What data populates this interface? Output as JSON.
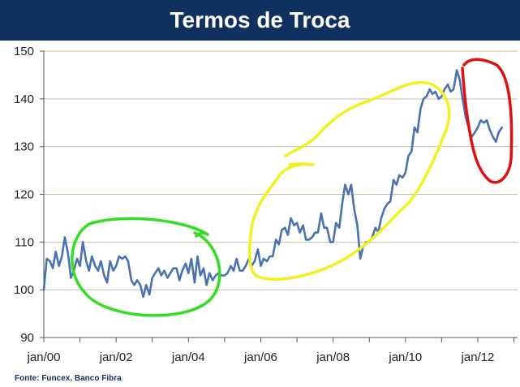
{
  "title": "Termos de Troca",
  "source": "Fonte: Funcex, Banco Fibra",
  "colors": {
    "title_bg": "#10305f",
    "line": "#4a72b0",
    "grid": "#c8c0a0",
    "annotation_green": "#33dd22",
    "annotation_yellow": "#f2f020",
    "annotation_red": "#e01010"
  },
  "chart_data": {
    "type": "line",
    "title": "Termos de Troca",
    "xlabel": "",
    "ylabel": "",
    "ylim": [
      90,
      150
    ],
    "yticks": [
      90,
      100,
      110,
      120,
      130,
      140,
      150
    ],
    "xlim": [
      2000,
      2013.1
    ],
    "xticks": [
      {
        "value": 2000,
        "label": "jan/00"
      },
      {
        "value": 2002,
        "label": "jan/02"
      },
      {
        "value": 2004,
        "label": "jan/04"
      },
      {
        "value": 2006,
        "label": "jan/06"
      },
      {
        "value": 2008,
        "label": "jan/08"
      },
      {
        "value": 2010,
        "label": "jan/10"
      },
      {
        "value": 2012,
        "label": "jan/12"
      }
    ],
    "grid": "horizontal",
    "series": [
      {
        "points": [
          [
            2000.0,
            100.0
          ],
          [
            2000.08,
            106.5
          ],
          [
            2000.17,
            106.0
          ],
          [
            2000.25,
            104.5
          ],
          [
            2000.33,
            108.0
          ],
          [
            2000.42,
            105.0
          ],
          [
            2000.5,
            107.0
          ],
          [
            2000.58,
            111.0
          ],
          [
            2000.67,
            107.5
          ],
          [
            2000.75,
            102.5
          ],
          [
            2000.83,
            104.0
          ],
          [
            2000.92,
            106.5
          ],
          [
            2001.0,
            105.0
          ],
          [
            2001.08,
            110.0
          ],
          [
            2001.17,
            106.0
          ],
          [
            2001.25,
            104.0
          ],
          [
            2001.33,
            107.0
          ],
          [
            2001.42,
            105.0
          ],
          [
            2001.5,
            104.0
          ],
          [
            2001.58,
            106.0
          ],
          [
            2001.67,
            103.0
          ],
          [
            2001.75,
            101.5
          ],
          [
            2001.83,
            106.0
          ],
          [
            2001.92,
            104.0
          ],
          [
            2002.0,
            105.0
          ],
          [
            2002.08,
            107.0
          ],
          [
            2002.17,
            106.5
          ],
          [
            2002.25,
            107.0
          ],
          [
            2002.33,
            106.0
          ],
          [
            2002.42,
            102.0
          ],
          [
            2002.5,
            101.0
          ],
          [
            2002.58,
            102.0
          ],
          [
            2002.67,
            101.0
          ],
          [
            2002.75,
            98.5
          ],
          [
            2002.83,
            101.0
          ],
          [
            2002.92,
            99.0
          ],
          [
            2003.0,
            102.5
          ],
          [
            2003.08,
            103.5
          ],
          [
            2003.17,
            104.5
          ],
          [
            2003.25,
            103.0
          ],
          [
            2003.33,
            104.0
          ],
          [
            2003.42,
            102.5
          ],
          [
            2003.5,
            103.5
          ],
          [
            2003.58,
            104.5
          ],
          [
            2003.67,
            104.5
          ],
          [
            2003.75,
            102.0
          ],
          [
            2003.83,
            104.0
          ],
          [
            2003.92,
            105.5
          ],
          [
            2004.0,
            103.5
          ],
          [
            2004.08,
            106.5
          ],
          [
            2004.17,
            101.5
          ],
          [
            2004.25,
            107.0
          ],
          [
            2004.33,
            103.0
          ],
          [
            2004.42,
            104.5
          ],
          [
            2004.5,
            101.0
          ],
          [
            2004.58,
            103.5
          ],
          [
            2004.67,
            102.0
          ],
          [
            2004.75,
            103.0
          ],
          [
            2004.83,
            103.5
          ],
          [
            2004.92,
            103.0
          ],
          [
            2005.0,
            103.0
          ],
          [
            2005.08,
            103.5
          ],
          [
            2005.17,
            105.0
          ],
          [
            2005.25,
            104.0
          ],
          [
            2005.33,
            106.5
          ],
          [
            2005.42,
            104.0
          ],
          [
            2005.5,
            104.0
          ],
          [
            2005.58,
            105.0
          ],
          [
            2005.67,
            106.5
          ],
          [
            2005.75,
            105.0
          ],
          [
            2005.83,
            106.0
          ],
          [
            2005.92,
            108.5
          ],
          [
            2006.0,
            105.0
          ],
          [
            2006.08,
            106.5
          ],
          [
            2006.17,
            106.0
          ],
          [
            2006.25,
            107.0
          ],
          [
            2006.33,
            107.0
          ],
          [
            2006.42,
            110.5
          ],
          [
            2006.5,
            109.5
          ],
          [
            2006.58,
            112.5
          ],
          [
            2006.67,
            113.0
          ],
          [
            2006.75,
            111.5
          ],
          [
            2006.83,
            115.0
          ],
          [
            2006.92,
            113.5
          ],
          [
            2007.0,
            114.0
          ],
          [
            2007.08,
            112.0
          ],
          [
            2007.17,
            113.5
          ],
          [
            2007.25,
            110.5
          ],
          [
            2007.33,
            110.5
          ],
          [
            2007.42,
            111.0
          ],
          [
            2007.5,
            112.0
          ],
          [
            2007.58,
            112.0
          ],
          [
            2007.67,
            116.0
          ],
          [
            2007.75,
            113.0
          ],
          [
            2007.83,
            113.0
          ],
          [
            2007.92,
            110.0
          ],
          [
            2008.0,
            110.0
          ],
          [
            2008.08,
            114.0
          ],
          [
            2008.17,
            113.0
          ],
          [
            2008.25,
            118.0
          ],
          [
            2008.33,
            122.0
          ],
          [
            2008.42,
            120.0
          ],
          [
            2008.5,
            122.0
          ],
          [
            2008.58,
            117.0
          ],
          [
            2008.67,
            113.5
          ],
          [
            2008.75,
            106.5
          ],
          [
            2008.83,
            109.0
          ],
          [
            2008.92,
            110.0
          ],
          [
            2009.0,
            110.0
          ],
          [
            2009.08,
            111.0
          ],
          [
            2009.17,
            113.0
          ],
          [
            2009.25,
            112.0
          ],
          [
            2009.33,
            115.0
          ],
          [
            2009.42,
            117.0
          ],
          [
            2009.5,
            118.0
          ],
          [
            2009.58,
            118.5
          ],
          [
            2009.67,
            123.0
          ],
          [
            2009.75,
            122.0
          ],
          [
            2009.83,
            124.0
          ],
          [
            2009.92,
            123.5
          ],
          [
            2010.0,
            124.5
          ],
          [
            2010.08,
            128.0
          ],
          [
            2010.17,
            129.0
          ],
          [
            2010.25,
            134.0
          ],
          [
            2010.33,
            133.0
          ],
          [
            2010.42,
            138.0
          ],
          [
            2010.5,
            140.0
          ],
          [
            2010.58,
            140.5
          ],
          [
            2010.67,
            142.0
          ],
          [
            2010.75,
            141.0
          ],
          [
            2010.83,
            141.5
          ],
          [
            2010.92,
            140.0
          ],
          [
            2011.0,
            140.5
          ],
          [
            2011.08,
            142.0
          ],
          [
            2011.17,
            143.0
          ],
          [
            2011.25,
            141.5
          ],
          [
            2011.33,
            142.0
          ],
          [
            2011.42,
            146.0
          ],
          [
            2011.5,
            144.0
          ],
          [
            2011.58,
            140.0
          ],
          [
            2011.67,
            136.0
          ],
          [
            2011.75,
            134.0
          ],
          [
            2011.83,
            132.0
          ],
          [
            2011.92,
            133.0
          ],
          [
            2012.0,
            134.0
          ],
          [
            2012.08,
            135.5
          ],
          [
            2012.17,
            135.0
          ],
          [
            2012.25,
            135.5
          ],
          [
            2012.33,
            133.5
          ],
          [
            2012.42,
            132.0
          ],
          [
            2012.5,
            131.0
          ],
          [
            2012.58,
            133.0
          ],
          [
            2012.67,
            134.0
          ]
        ]
      }
    ]
  }
}
